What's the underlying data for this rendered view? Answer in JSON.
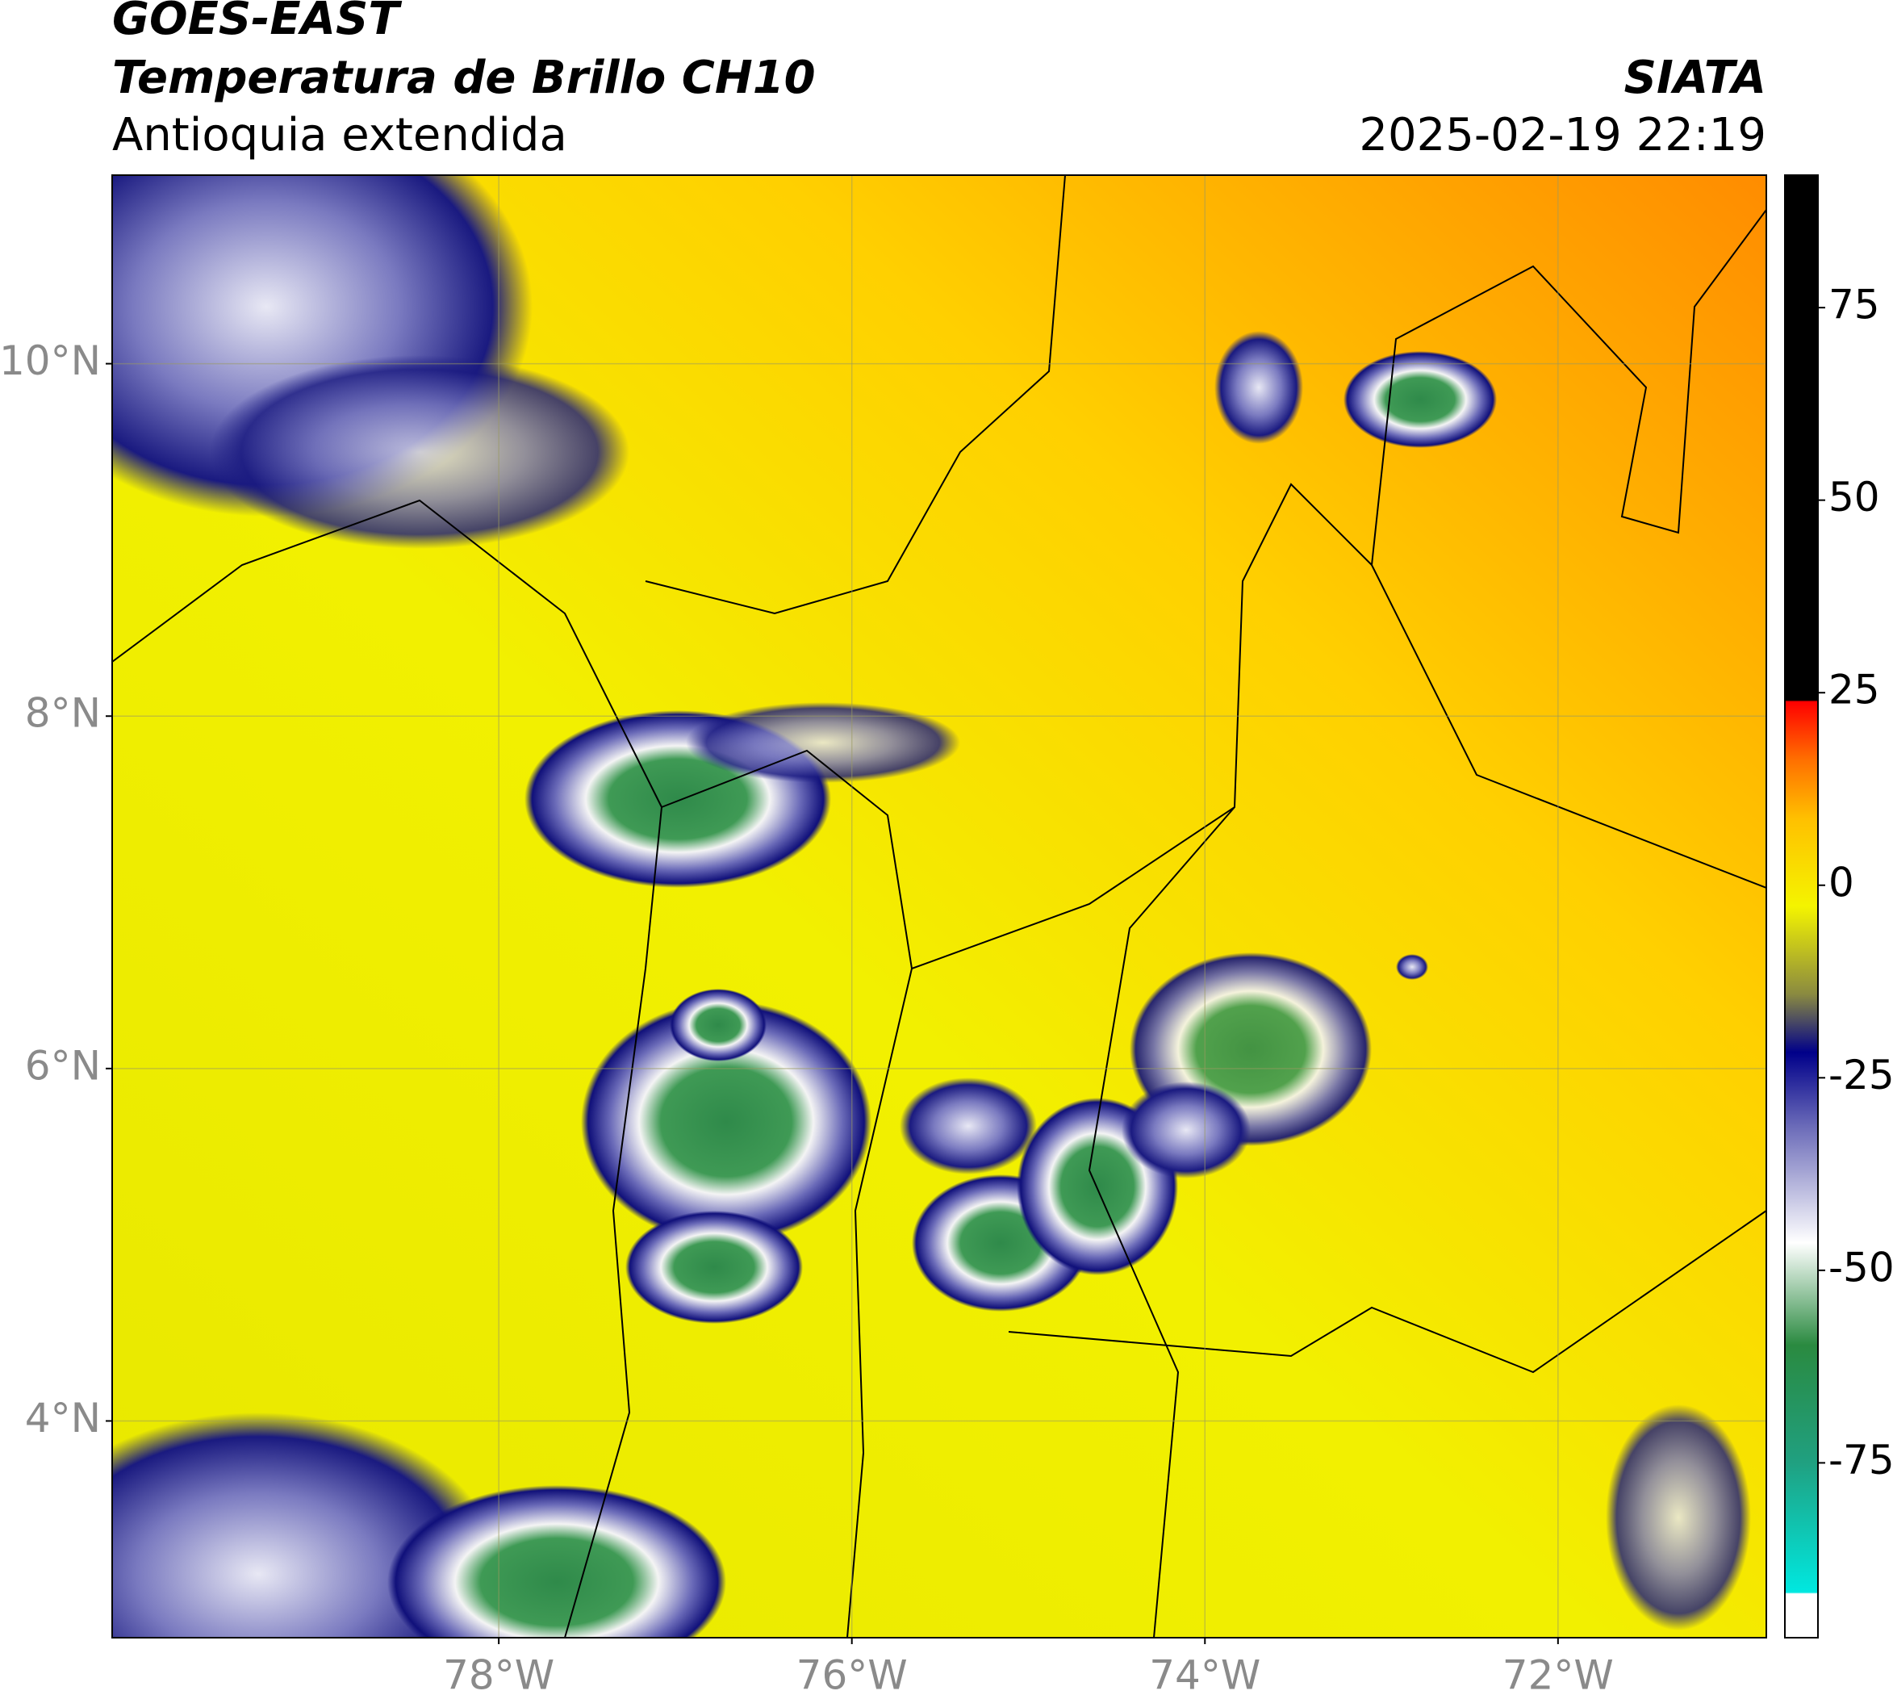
{
  "chart_data": {
    "type": "map",
    "title": "GOES-EAST",
    "subtitle": "Temperatura de Brillo CH10",
    "region": "Antioquia extendida",
    "source": "SIATA",
    "datetime": "2025-02-19 22:19",
    "xlim": [
      -80.19,
      -70.82
    ],
    "ylim": [
      2.77,
      11.07
    ],
    "xticks": [
      {
        "value": -78,
        "label": "78°W"
      },
      {
        "value": -76,
        "label": "76°W"
      },
      {
        "value": -74,
        "label": "74°W"
      },
      {
        "value": -72,
        "label": "72°W"
      }
    ],
    "yticks": [
      {
        "value": 4,
        "label": "4°N"
      },
      {
        "value": 6,
        "label": "6°N"
      },
      {
        "value": 8,
        "label": "8°N"
      },
      {
        "value": 10,
        "label": "10°N"
      }
    ],
    "grid": true,
    "colorbar": {
      "lim": [
        -97.7,
        92.2
      ],
      "ticks": [
        -75,
        -50,
        -25,
        0,
        25,
        50,
        75
      ]
    }
  }
}
